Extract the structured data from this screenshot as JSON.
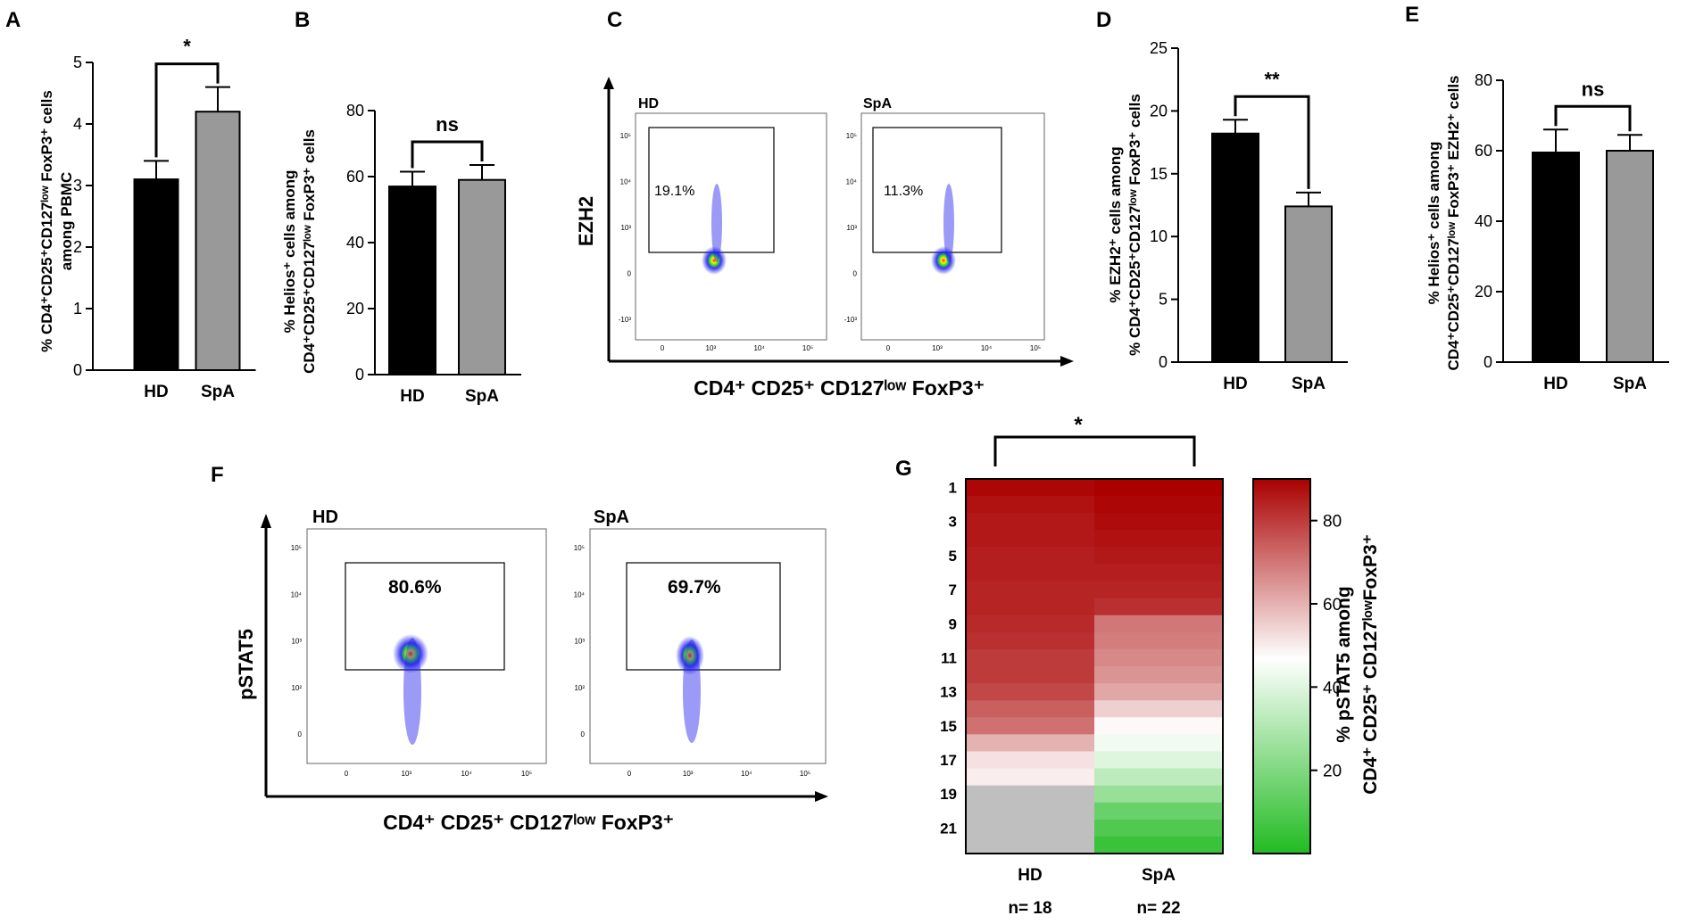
{
  "colors": {
    "hd_bar": "#000000",
    "spa_bar": "#999999",
    "heat_low": "#22bb22",
    "heat_mid": "#ffffff",
    "heat_high": "#aa0000",
    "missing": "#bfbfbf"
  },
  "panels": {
    "A": {
      "letter": "A"
    },
    "B": {
      "letter": "B"
    },
    "C": {
      "letter": "C",
      "hd_label": "HD",
      "spa_label": "SpA",
      "hd_gate": "19.1%",
      "spa_gate": "11.3%",
      "y_axis": "EZH2",
      "x_axis": "CD4⁺ CD25⁺ CD127ˡᵒʷ FoxP3⁺",
      "y_ticks": [
        "10⁵",
        "10⁴",
        "10³",
        "0",
        "-10³"
      ],
      "x_ticks": [
        "0",
        "10³",
        "10⁴",
        "10⁵"
      ]
    },
    "D": {
      "letter": "D"
    },
    "E": {
      "letter": "E"
    },
    "F": {
      "letter": "F",
      "hd_label": "HD",
      "spa_label": "SpA",
      "hd_gate": "80.6%",
      "spa_gate": "69.7%",
      "y_axis": "pSTAT5",
      "x_axis": "CD4⁺ CD25⁺ CD127ˡᵒʷ FoxP3⁺",
      "y_ticks": [
        "10⁵",
        "10⁴",
        "10³",
        "10²",
        "0"
      ],
      "x_ticks": [
        "0",
        "10³",
        "10⁴",
        "10⁵"
      ]
    },
    "G": {
      "letter": "G"
    }
  },
  "chart_data": [
    {
      "panel": "A",
      "type": "bar",
      "categories": [
        "HD",
        "SpA"
      ],
      "values": [
        3.1,
        4.2
      ],
      "errors": [
        0.3,
        0.4
      ],
      "ylim": [
        0,
        5
      ],
      "yticks": [
        "0",
        "1",
        "2",
        "3",
        "4",
        "5"
      ],
      "ylabel": [
        "% CD4⁺CD25⁺CD127ˡᵒʷ FoxP3⁺ cells",
        "among PBMC"
      ],
      "significance": "*"
    },
    {
      "panel": "B",
      "type": "bar",
      "categories": [
        "HD",
        "SpA"
      ],
      "values": [
        57,
        59
      ],
      "errors": [
        4.5,
        4.5
      ],
      "ylim": [
        0,
        80
      ],
      "yticks": [
        "0",
        "20",
        "40",
        "60",
        "80"
      ],
      "ylabel": [
        "% Helios⁺ cells among",
        "CD4⁺CD25⁺CD127ˡᵒʷ FoxP3⁺ cells"
      ],
      "significance": "ns"
    },
    {
      "panel": "D",
      "type": "bar",
      "categories": [
        "HD",
        "SpA"
      ],
      "values": [
        18.2,
        12.4
      ],
      "errors": [
        1.1,
        1.1
      ],
      "ylim": [
        0,
        25
      ],
      "yticks": [
        "0",
        "5",
        "10",
        "15",
        "20",
        "25"
      ],
      "ylabel": [
        "% EZH2⁺ cells among",
        "% CD4⁺CD25⁺CD127ˡᵒʷ FoxP3⁺ cells"
      ],
      "significance": "**"
    },
    {
      "panel": "E",
      "type": "bar",
      "categories": [
        "HD",
        "SpA"
      ],
      "values": [
        59.5,
        60
      ],
      "errors": [
        6.5,
        4.5
      ],
      "ylim": [
        0,
        80
      ],
      "yticks": [
        "0",
        "20",
        "40",
        "60",
        "80"
      ],
      "ylabel": [
        "% Helios⁺ cells among",
        "CD4⁺CD25⁺CD127ˡᵒʷ FoxP3⁺ EZH2⁺ cells"
      ],
      "significance": "ns"
    },
    {
      "panel": "G",
      "type": "heatmap",
      "columns": [
        "HD",
        "SpA"
      ],
      "column_counts": [
        "n= 18",
        "n= 22"
      ],
      "row_labels": [
        "1",
        "3",
        "5",
        "7",
        "9",
        "11",
        "13",
        "15",
        "17",
        "19",
        "21"
      ],
      "hd": [
        89,
        87,
        86,
        86,
        85,
        85,
        84,
        84,
        83,
        82,
        80,
        80,
        78,
        74,
        71,
        60,
        52,
        50
      ],
      "spa": [
        90,
        89,
        88,
        87,
        86,
        85,
        84,
        82,
        70,
        69,
        67,
        65,
        62,
        55,
        48,
        44,
        40,
        33,
        25,
        15,
        10,
        5
      ],
      "scale_min": 0,
      "scale_max": 90,
      "scale_ticks": [
        "20",
        "40",
        "60",
        "80"
      ],
      "scale_tick_values": [
        20,
        40,
        60,
        80
      ],
      "colorbar_label": [
        "% pSTAT5 among",
        "CD4⁺ CD25⁺ CD127ˡᵒʷFoxP3⁺"
      ],
      "significance": "*"
    }
  ]
}
